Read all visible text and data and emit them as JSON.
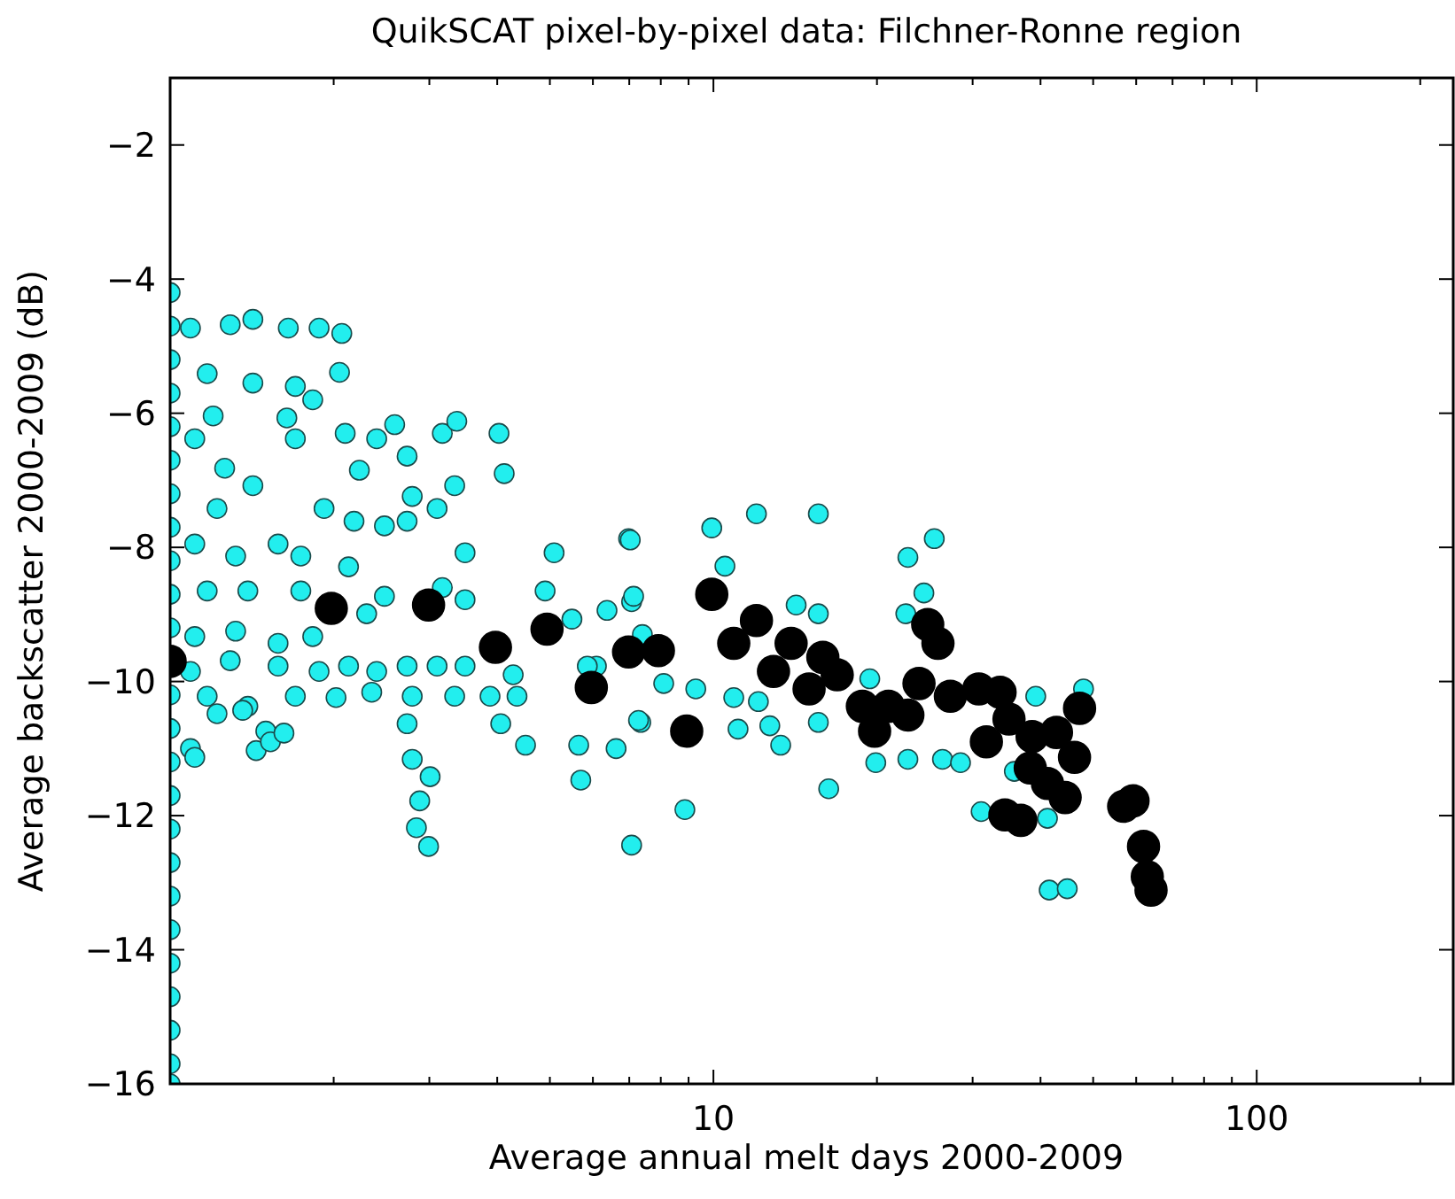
{
  "chart_data": {
    "type": "scatter",
    "title": "QuikSCAT pixel-by-pixel data: Filchner-Ronne region",
    "xlabel": "Average annual melt days 2000-2009",
    "ylabel": "Average backscatter 2000-2009 (dB)",
    "log": "x",
    "grid": false,
    "marker": "circle",
    "xlim": [
      1,
      230
    ],
    "xticks": [
      {
        "value": 2,
        "label": null
      },
      {
        "value": 3,
        "label": null
      },
      {
        "value": 4,
        "label": null
      },
      {
        "value": 5,
        "label": null
      },
      {
        "value": 6,
        "label": null
      },
      {
        "value": 7,
        "label": null
      },
      {
        "value": 8,
        "label": null
      },
      {
        "value": 9,
        "label": null
      },
      10,
      {
        "value": 20,
        "label": null
      },
      {
        "value": 30,
        "label": null
      },
      {
        "value": 40,
        "label": null
      },
      {
        "value": 50,
        "label": null
      },
      {
        "value": 60,
        "label": null
      },
      {
        "value": 70,
        "label": null
      },
      {
        "value": 80,
        "label": null
      },
      {
        "value": 90,
        "label": null
      },
      100,
      {
        "value": 200,
        "label": null
      }
    ],
    "ylim": [
      -16,
      -1
    ],
    "yticks": [
      -16,
      -14,
      -12,
      -10,
      -8,
      -6,
      -4,
      -2
    ],
    "series": [
      {
        "color": "#22eeee",
        "x": [
          1,
          1,
          1,
          1,
          1,
          1,
          1,
          1,
          1,
          1,
          1,
          1,
          1,
          1,
          1,
          1,
          1,
          1,
          1,
          1,
          1,
          1,
          1,
          1,
          1.09,
          1.29,
          1.42,
          1.65,
          1.88,
          2.07,
          2.05,
          1.7,
          1.42,
          1.17,
          1.2,
          1.64,
          1.83,
          2.1,
          2.4,
          2.59,
          2.73,
          3.17,
          3.37,
          4.03,
          4.12,
          2.79,
          3.34,
          3.1,
          2.23,
          1.11,
          1.26,
          1.42,
          1.22,
          1.7,
          1.92,
          2.18,
          2.48,
          2.73,
          1.11,
          1.32,
          1.58,
          1.74,
          2.13,
          1.17,
          1.39,
          1.74,
          2.48,
          3.17,
          3.49,
          2.3,
          1.11,
          1.32,
          1.58,
          1.83,
          1.09,
          1.29,
          1.58,
          1.88,
          2.13,
          2.4,
          2.73,
          3.1,
          3.49,
          4.28,
          1.17,
          1.39,
          1.7,
          2.02,
          2.35,
          2.79,
          3.34,
          3.88,
          4.35,
          4.06,
          2.73,
          2.79,
          3.01,
          2.88,
          2.84,
          2.99,
          1.22,
          1.36,
          1.5,
          1.09,
          1.11,
          1.44,
          1.53,
          1.62,
          4.51,
          3.49,
          5.09,
          4.9,
          5.49,
          5.65,
          5.7,
          6.62,
          7.07,
          6.98,
          7.07,
          6.09,
          7.35,
          7.03,
          9.93,
          12,
          15.6,
          22.8,
          25.5,
          6.37,
          7.13,
          7.4,
          10.5,
          14.2,
          15.6,
          24.4,
          22.6,
          5.86,
          8.1,
          9.28,
          10.9,
          12.1,
          15.6,
          19.4,
          19.9,
          22.8,
          26.4,
          28.5,
          31.1,
          35.8,
          39.2,
          48,
          41.2,
          41.5,
          44.8,
          16.3,
          8.86,
          7.28,
          11.1,
          12.7,
          13.3
        ],
        "values": [
          -4.2,
          -4.7,
          -5.2,
          -5.7,
          -6.2,
          -6.7,
          -7.2,
          -7.7,
          -8.2,
          -8.7,
          -9.2,
          -10.2,
          -10.7,
          -11.2,
          -11.7,
          -12.2,
          -12.7,
          -13.2,
          -13.7,
          -14.2,
          -14.7,
          -15.2,
          -15.7,
          -16,
          -4.73,
          -4.68,
          -4.6,
          -4.73,
          -4.73,
          -4.81,
          -5.39,
          -5.6,
          -5.55,
          -5.41,
          -6.04,
          -6.07,
          -5.8,
          -6.3,
          -6.38,
          -6.17,
          -6.64,
          -6.3,
          -6.12,
          -6.3,
          -6.9,
          -7.24,
          -7.08,
          -7.42,
          -6.85,
          -6.38,
          -6.82,
          -7.08,
          -7.42,
          -6.38,
          -7.42,
          -7.61,
          -7.68,
          -7.61,
          -7.95,
          -8.13,
          -7.95,
          -8.13,
          -8.29,
          -8.65,
          -8.65,
          -8.65,
          -8.73,
          -8.6,
          -8.78,
          -8.99,
          -9.33,
          -9.25,
          -9.43,
          -9.33,
          -9.85,
          -9.69,
          -9.77,
          -9.85,
          -9.77,
          -9.85,
          -9.77,
          -9.77,
          -9.77,
          -9.9,
          -10.22,
          -10.37,
          -10.22,
          -10.24,
          -10.16,
          -10.22,
          -10.22,
          -10.22,
          -10.22,
          -10.63,
          -10.63,
          -11.16,
          -11.42,
          -11.78,
          -12.18,
          -12.46,
          -10.48,
          -10.43,
          -10.74,
          -11,
          -11.13,
          -11.03,
          -10.9,
          -10.77,
          -10.95,
          -8.08,
          -8.08,
          -8.65,
          -9.07,
          -10.95,
          -11.47,
          -11,
          -12.44,
          -7.87,
          -8.81,
          -9.77,
          -10.61,
          -7.89,
          -7.71,
          -7.5,
          -7.5,
          -8.15,
          -7.87,
          -8.94,
          -8.73,
          -9.3,
          -8.28,
          -8.86,
          -8.99,
          -8.68,
          -8.99,
          -9.77,
          -10.03,
          -10.11,
          -10.24,
          -10.3,
          -10.61,
          -9.96,
          -11.21,
          -11.16,
          -11.16,
          -11.21,
          -11.94,
          -11.34,
          -10.22,
          -10.11,
          -12.04,
          -13.11,
          -13.09,
          -11.6,
          -11.91,
          -10.58,
          -10.71,
          -10.66,
          -10.95
        ]
      },
      {
        "color": "#000000",
        "x": [
          1,
          1.98,
          2.99,
          3.97,
          4.94,
          5.96,
          6.98,
          7.92,
          8.93,
          9.93,
          10.9,
          12,
          12.9,
          13.9,
          15,
          15.9,
          16.9,
          18.8,
          19.8,
          21,
          22.8,
          23.9,
          24.8,
          25.9,
          27.3,
          30.8,
          33.7,
          31.8,
          35,
          38.6,
          42.8,
          46.2,
          47.2,
          38.3,
          41.2,
          44.4,
          34.4,
          36.8,
          56.9,
          59.2,
          61.9,
          62.9,
          63.9
        ],
        "values": [
          -9.7,
          -8.91,
          -8.86,
          -9.49,
          -9.22,
          -10.09,
          -9.56,
          -9.54,
          -10.74,
          -8.7,
          -9.43,
          -9.09,
          -9.85,
          -9.43,
          -10.11,
          -9.64,
          -9.9,
          -10.37,
          -10.74,
          -10.37,
          -10.5,
          -10.03,
          -9.15,
          -9.43,
          -10.22,
          -10.11,
          -10.16,
          -10.9,
          -10.56,
          -10.82,
          -10.76,
          -11.13,
          -10.4,
          -11.29,
          -11.52,
          -11.73,
          -11.99,
          -12.07,
          -11.86,
          -11.78,
          -12.46,
          -12.91,
          -13.11
        ]
      }
    ]
  }
}
